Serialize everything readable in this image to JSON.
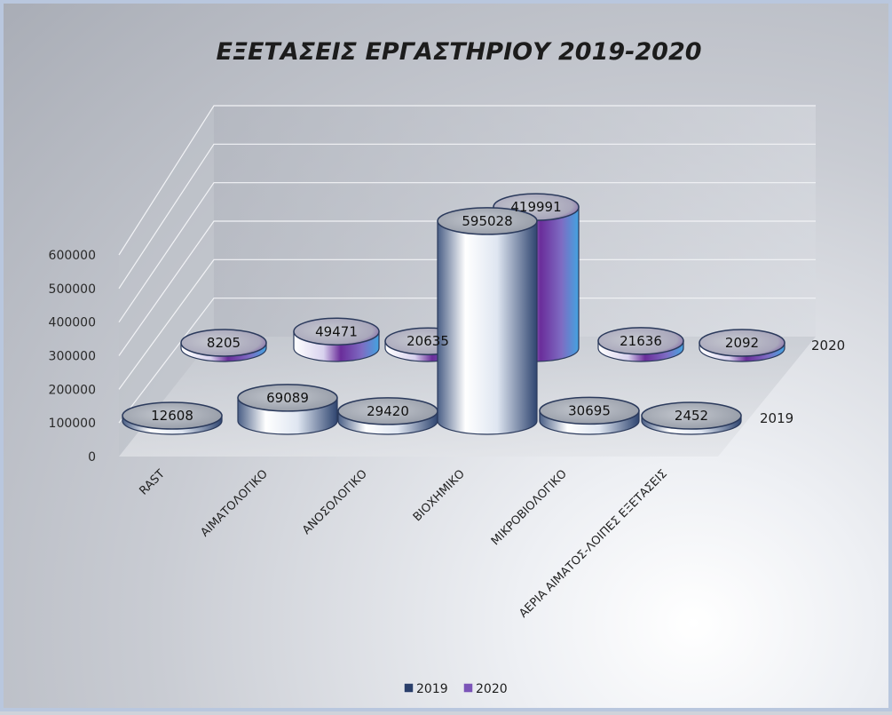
{
  "chart_data": {
    "type": "bar",
    "title": "ΕΞΕΤΑΣΕΙΣ ΕΡΓΑΣΤΗΡΙΟΥ 2019-2020",
    "categories": [
      "RAST",
      "ΑΙΜΑΤΟΛΟΓΙΚΟ",
      "ΑΝΟΣΟΛΟΓΙΚΟ",
      "ΒΙΟΧΗΜΙΚΟ",
      "ΜΙΚΡΟΒΙΟΛΟΓΙΚΟ",
      "ΑΕΡΙΑ ΑΙΜΑΤΟΣ-ΛΟΙΠΕΣ ΕΞΕΤΑΣΕΙΣ"
    ],
    "series": [
      {
        "name": "2019",
        "values": [
          12608,
          69089,
          29420,
          595028,
          30695,
          2452
        ],
        "labels": [
          "12608",
          "69089",
          "29420",
          "595028",
          "30695",
          "2452"
        ]
      },
      {
        "name": "2020",
        "values": [
          8205,
          49471,
          20635,
          419991,
          21636,
          2092
        ],
        "labels": [
          "8205",
          "49471",
          "20635",
          "419991",
          "21636",
          "2092"
        ]
      }
    ],
    "yticks": [
      "0",
      "100000",
      "200000",
      "300000",
      "400000",
      "500000",
      "600000"
    ],
    "ylim": [
      0,
      600000
    ],
    "legend": "bottom",
    "grid": true,
    "style": "3d-cylinder",
    "colors": {
      "2019": "#2a3f6b",
      "2020": "#6a3a9a"
    }
  }
}
